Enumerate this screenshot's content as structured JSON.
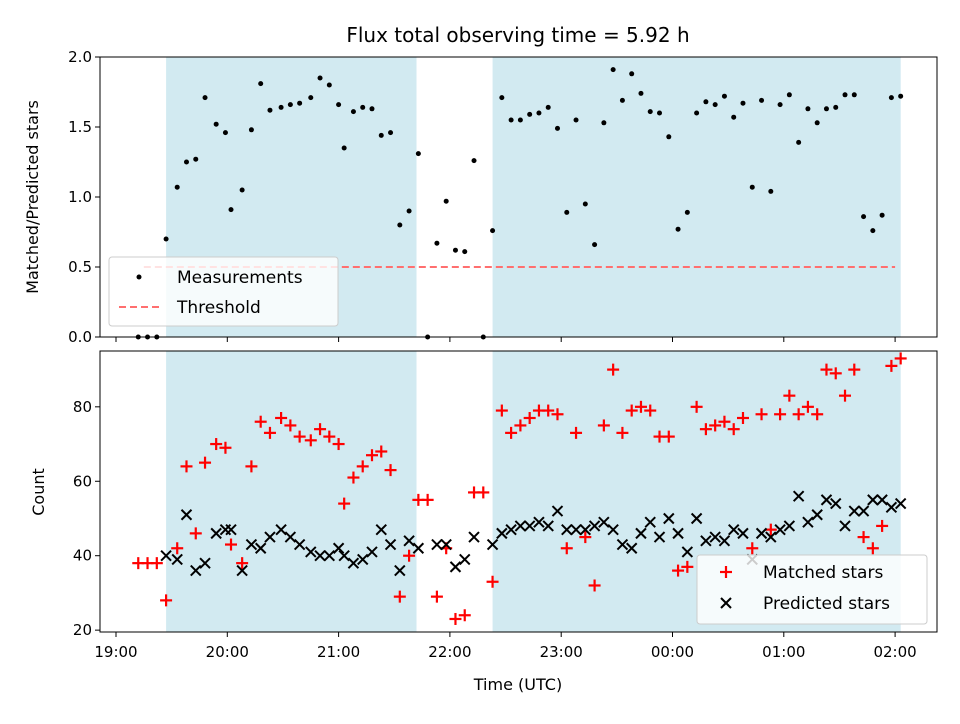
{
  "chart_data": [
    {
      "type": "scatter",
      "title": "Flux total observing time = 5.92 h",
      "xlabel": "",
      "ylabel": "Matched/Predicted stars",
      "ylim": [
        0,
        2.0
      ],
      "yticks": [
        "0.0",
        "0.5",
        "1.0",
        "1.5",
        "2.0"
      ],
      "shaded_intervals": [
        [
          "19:27",
          "21:42"
        ],
        [
          "22:23",
          "02:03"
        ]
      ],
      "shade_color": "#add8e6",
      "threshold": {
        "name": "Threshold",
        "value": 0.5,
        "color": "#ff6f6f",
        "x_range": [
          "19:15",
          "02:00"
        ]
      },
      "legend_location": "lower-left",
      "series": [
        {
          "name": "Measurements",
          "color": "#000000",
          "points": [
            [
              "19:12",
              0.0
            ],
            [
              "19:17",
              0.0
            ],
            [
              "19:22",
              0.0
            ],
            [
              "19:27",
              0.7
            ],
            [
              "19:33",
              1.07
            ],
            [
              "19:38",
              1.25
            ],
            [
              "19:43",
              1.27
            ],
            [
              "19:48",
              1.71
            ],
            [
              "19:54",
              1.52
            ],
            [
              "19:59",
              1.46
            ],
            [
              "20:02",
              0.91
            ],
            [
              "20:08",
              1.05
            ],
            [
              "20:13",
              1.48
            ],
            [
              "20:18",
              1.81
            ],
            [
              "20:23",
              1.62
            ],
            [
              "20:29",
              1.64
            ],
            [
              "20:34",
              1.66
            ],
            [
              "20:39",
              1.67
            ],
            [
              "20:45",
              1.71
            ],
            [
              "20:50",
              1.85
            ],
            [
              "20:55",
              1.8
            ],
            [
              "21:00",
              1.66
            ],
            [
              "21:03",
              1.35
            ],
            [
              "21:08",
              1.61
            ],
            [
              "21:13",
              1.64
            ],
            [
              "21:18",
              1.63
            ],
            [
              "21:23",
              1.44
            ],
            [
              "21:28",
              1.46
            ],
            [
              "21:33",
              0.8
            ],
            [
              "21:38",
              0.9
            ],
            [
              "21:43",
              1.31
            ],
            [
              "21:48",
              0.0
            ],
            [
              "21:53",
              0.67
            ],
            [
              "21:58",
              0.97
            ],
            [
              "22:03",
              0.62
            ],
            [
              "22:08",
              0.61
            ],
            [
              "22:13",
              1.26
            ],
            [
              "22:18",
              0.0
            ],
            [
              "22:23",
              0.76
            ],
            [
              "22:28",
              1.71
            ],
            [
              "22:33",
              1.55
            ],
            [
              "22:38",
              1.55
            ],
            [
              "22:43",
              1.59
            ],
            [
              "22:48",
              1.6
            ],
            [
              "22:53",
              1.64
            ],
            [
              "22:58",
              1.49
            ],
            [
              "23:03",
              0.89
            ],
            [
              "23:08",
              1.55
            ],
            [
              "23:13",
              0.95
            ],
            [
              "23:18",
              0.66
            ],
            [
              "23:23",
              1.53
            ],
            [
              "23:28",
              1.91
            ],
            [
              "23:33",
              1.69
            ],
            [
              "23:38",
              1.88
            ],
            [
              "23:43",
              1.74
            ],
            [
              "23:48",
              1.61
            ],
            [
              "23:53",
              1.6
            ],
            [
              "23:58",
              1.43
            ],
            [
              "00:03",
              0.77
            ],
            [
              "00:08",
              0.89
            ],
            [
              "00:13",
              1.6
            ],
            [
              "00:18",
              1.68
            ],
            [
              "00:23",
              1.66
            ],
            [
              "00:28",
              1.72
            ],
            [
              "00:33",
              1.57
            ],
            [
              "00:38",
              1.67
            ],
            [
              "00:43",
              1.07
            ],
            [
              "00:48",
              1.69
            ],
            [
              "00:53",
              1.04
            ],
            [
              "00:58",
              1.66
            ],
            [
              "01:03",
              1.73
            ],
            [
              "01:08",
              1.39
            ],
            [
              "01:13",
              1.63
            ],
            [
              "01:18",
              1.53
            ],
            [
              "01:23",
              1.63
            ],
            [
              "01:28",
              1.64
            ],
            [
              "01:33",
              1.73
            ],
            [
              "01:38",
              1.73
            ],
            [
              "01:43",
              0.86
            ],
            [
              "01:48",
              0.76
            ],
            [
              "01:53",
              0.87
            ],
            [
              "01:58",
              1.71
            ],
            [
              "02:03",
              1.72
            ]
          ]
        }
      ]
    },
    {
      "type": "scatter",
      "title": "",
      "xlabel": "Time (UTC)",
      "ylabel": "Count",
      "ylim": [
        19.5,
        95
      ],
      "yticks": [
        "20",
        "40",
        "60",
        "80"
      ],
      "xticks": [
        "19:00",
        "20:00",
        "21:00",
        "22:00",
        "23:00",
        "00:00",
        "01:00",
        "02:00"
      ],
      "shaded_intervals": [
        [
          "19:27",
          "21:42"
        ],
        [
          "22:23",
          "02:03"
        ]
      ],
      "shade_color": "#add8e6",
      "legend_location": "lower-right",
      "series": [
        {
          "name": "Matched stars",
          "marker": "+",
          "color": "#ff0000",
          "points": [
            [
              "19:12",
              38
            ],
            [
              "19:17",
              38
            ],
            [
              "19:22",
              38
            ],
            [
              "19:27",
              28
            ],
            [
              "19:33",
              42
            ],
            [
              "19:38",
              64
            ],
            [
              "19:43",
              46
            ],
            [
              "19:48",
              65
            ],
            [
              "19:54",
              70
            ],
            [
              "19:59",
              69
            ],
            [
              "20:02",
              43
            ],
            [
              "20:08",
              38
            ],
            [
              "20:13",
              64
            ],
            [
              "20:18",
              76
            ],
            [
              "20:23",
              73
            ],
            [
              "20:29",
              77
            ],
            [
              "20:34",
              75
            ],
            [
              "20:39",
              72
            ],
            [
              "20:45",
              71
            ],
            [
              "20:50",
              74
            ],
            [
              "20:55",
              72
            ],
            [
              "21:00",
              70
            ],
            [
              "21:03",
              54
            ],
            [
              "21:08",
              61
            ],
            [
              "21:13",
              64
            ],
            [
              "21:18",
              67
            ],
            [
              "21:23",
              68
            ],
            [
              "21:28",
              63
            ],
            [
              "21:33",
              29
            ],
            [
              "21:38",
              40
            ],
            [
              "21:43",
              55
            ],
            [
              "21:48",
              55
            ],
            [
              "21:53",
              29
            ],
            [
              "21:58",
              42
            ],
            [
              "22:03",
              23
            ],
            [
              "22:08",
              24
            ],
            [
              "22:13",
              57
            ],
            [
              "22:18",
              57
            ],
            [
              "22:23",
              33
            ],
            [
              "22:28",
              79
            ],
            [
              "22:33",
              73
            ],
            [
              "22:38",
              75
            ],
            [
              "22:43",
              77
            ],
            [
              "22:48",
              79
            ],
            [
              "22:53",
              79
            ],
            [
              "22:58",
              78
            ],
            [
              "23:03",
              42
            ],
            [
              "23:08",
              73
            ],
            [
              "23:13",
              45
            ],
            [
              "23:18",
              32
            ],
            [
              "23:23",
              75
            ],
            [
              "23:28",
              90
            ],
            [
              "23:33",
              73
            ],
            [
              "23:38",
              79
            ],
            [
              "23:43",
              80
            ],
            [
              "23:48",
              79
            ],
            [
              "23:53",
              72
            ],
            [
              "23:58",
              72
            ],
            [
              "00:03",
              36
            ],
            [
              "00:08",
              37
            ],
            [
              "00:13",
              80
            ],
            [
              "00:18",
              74
            ],
            [
              "00:23",
              75
            ],
            [
              "00:28",
              76
            ],
            [
              "00:33",
              74
            ],
            [
              "00:38",
              77
            ],
            [
              "00:43",
              42
            ],
            [
              "00:48",
              78
            ],
            [
              "00:53",
              47
            ],
            [
              "00:58",
              78
            ],
            [
              "01:03",
              83
            ],
            [
              "01:08",
              78
            ],
            [
              "01:13",
              80
            ],
            [
              "01:18",
              78
            ],
            [
              "01:23",
              90
            ],
            [
              "01:28",
              89
            ],
            [
              "01:33",
              83
            ],
            [
              "01:38",
              90
            ],
            [
              "01:43",
              45
            ],
            [
              "01:48",
              42
            ],
            [
              "01:53",
              48
            ],
            [
              "01:58",
              91
            ],
            [
              "02:03",
              93
            ]
          ]
        },
        {
          "name": "Predicted stars",
          "marker": "x",
          "color": "#000000",
          "points": [
            [
              "19:27",
              40
            ],
            [
              "19:33",
              39
            ],
            [
              "19:38",
              51
            ],
            [
              "19:43",
              36
            ],
            [
              "19:48",
              38
            ],
            [
              "19:54",
              46
            ],
            [
              "19:59",
              47
            ],
            [
              "20:02",
              47
            ],
            [
              "20:08",
              36
            ],
            [
              "20:13",
              43
            ],
            [
              "20:18",
              42
            ],
            [
              "20:23",
              45
            ],
            [
              "20:29",
              47
            ],
            [
              "20:34",
              45
            ],
            [
              "20:39",
              43
            ],
            [
              "20:45",
              41
            ],
            [
              "20:50",
              40
            ],
            [
              "20:55",
              40
            ],
            [
              "21:00",
              42
            ],
            [
              "21:03",
              40
            ],
            [
              "21:08",
              38
            ],
            [
              "21:13",
              39
            ],
            [
              "21:18",
              41
            ],
            [
              "21:23",
              47
            ],
            [
              "21:28",
              43
            ],
            [
              "21:33",
              36
            ],
            [
              "21:38",
              44
            ],
            [
              "21:43",
              42
            ],
            [
              "21:53",
              43
            ],
            [
              "21:58",
              43
            ],
            [
              "22:03",
              37
            ],
            [
              "22:08",
              39
            ],
            [
              "22:13",
              45
            ],
            [
              "22:23",
              43
            ],
            [
              "22:28",
              46
            ],
            [
              "22:33",
              47
            ],
            [
              "22:38",
              48
            ],
            [
              "22:43",
              48
            ],
            [
              "22:48",
              49
            ],
            [
              "22:53",
              48
            ],
            [
              "22:58",
              52
            ],
            [
              "23:03",
              47
            ],
            [
              "23:08",
              47
            ],
            [
              "23:13",
              47
            ],
            [
              "23:18",
              48
            ],
            [
              "23:23",
              49
            ],
            [
              "23:28",
              47
            ],
            [
              "23:33",
              43
            ],
            [
              "23:38",
              42
            ],
            [
              "23:43",
              46
            ],
            [
              "23:48",
              49
            ],
            [
              "23:53",
              45
            ],
            [
              "23:58",
              50
            ],
            [
              "00:03",
              46
            ],
            [
              "00:08",
              41
            ],
            [
              "00:13",
              50
            ],
            [
              "00:18",
              44
            ],
            [
              "00:23",
              45
            ],
            [
              "00:28",
              44
            ],
            [
              "00:33",
              47
            ],
            [
              "00:38",
              46
            ],
            [
              "00:43",
              39
            ],
            [
              "00:48",
              46
            ],
            [
              "00:53",
              45
            ],
            [
              "00:58",
              47
            ],
            [
              "01:03",
              48
            ],
            [
              "01:08",
              56
            ],
            [
              "01:13",
              49
            ],
            [
              "01:18",
              51
            ],
            [
              "01:23",
              55
            ],
            [
              "01:28",
              54
            ],
            [
              "01:33",
              48
            ],
            [
              "01:38",
              52
            ],
            [
              "01:43",
              52
            ],
            [
              "01:48",
              55
            ],
            [
              "01:53",
              55
            ],
            [
              "01:58",
              53
            ],
            [
              "02:03",
              54
            ]
          ]
        }
      ]
    }
  ]
}
